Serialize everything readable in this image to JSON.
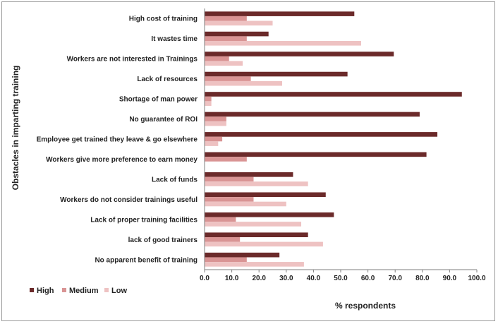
{
  "chart_data": {
    "type": "bar",
    "orientation": "horizontal",
    "categories": [
      "High cost of training",
      "It wastes time",
      "Workers are not interested in Trainings",
      "Lack of resources",
      "Shortage of man power",
      "No guarantee of ROI",
      "Employee get trained they leave & go elsewhere",
      "Workers give more preference to earn money",
      "Lack of funds",
      "Workers do not consider trainings useful",
      "Lack of proper training facilities",
      "lack of good trainers",
      "No apparent benefit of training"
    ],
    "series": [
      {
        "name": "High",
        "color": "#6b2a2a",
        "values": [
          55,
          23.5,
          69.5,
          52.5,
          94.5,
          79,
          85.5,
          81.5,
          32.5,
          44.5,
          47.5,
          38,
          27.5
        ]
      },
      {
        "name": "Medium",
        "color": "#d99494",
        "values": [
          15.5,
          15.5,
          9,
          17,
          2.5,
          8,
          6.5,
          15.5,
          18,
          18,
          11.5,
          13,
          15.5
        ]
      },
      {
        "name": "Low",
        "color": "#eec2c2",
        "values": [
          25,
          57.5,
          14,
          28.5,
          2.5,
          8,
          5,
          0,
          38,
          30,
          35.5,
          43.5,
          36.5
        ]
      }
    ],
    "xlim": [
      0,
      100
    ],
    "xticks": [
      "0.0",
      "10.0",
      "20.0",
      "30.0",
      "40.0",
      "50.0",
      "60.0",
      "70.0",
      "80.0",
      "90.0",
      "100.0"
    ],
    "xlabel": "% respondents",
    "ylabel": "Obstacles in imparting training",
    "legend_position": "bottom-left",
    "grid": false
  }
}
